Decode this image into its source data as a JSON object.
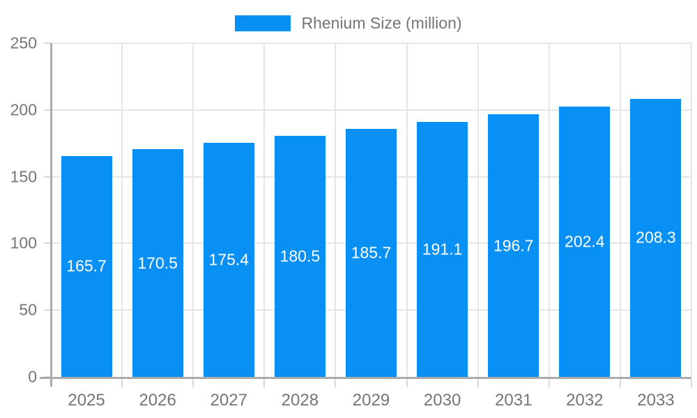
{
  "legend": {
    "label": "Rhenium Size (million)",
    "swatch_color": "#0990f5"
  },
  "chart_data": {
    "type": "bar",
    "title": "",
    "xlabel": "",
    "ylabel": "",
    "categories": [
      "2025",
      "2026",
      "2027",
      "2028",
      "2029",
      "2030",
      "2031",
      "2032",
      "2033"
    ],
    "series": [
      {
        "name": "Rhenium Size (million)",
        "values": [
          165.7,
          170.5,
          175.4,
          180.5,
          185.7,
          191.1,
          196.7,
          202.4,
          208.3
        ],
        "data_labels": [
          "165.7",
          "170.5",
          "175.4",
          "180.5",
          "185.7",
          "191.1",
          "196.7",
          "202.4",
          "208.3"
        ]
      }
    ],
    "ylim": [
      0,
      250
    ],
    "yticks": [
      0,
      50,
      100,
      150,
      200,
      250
    ],
    "grid": true,
    "legend_position": "top-center",
    "colors": {
      "bar": "#0990f5",
      "bar_label_text": "#ffffff",
      "grid_line": "#e5e5e5",
      "axis_line": "#ababab",
      "tick_mark": "#d9d9d9",
      "axis_text": "#757575"
    }
  }
}
